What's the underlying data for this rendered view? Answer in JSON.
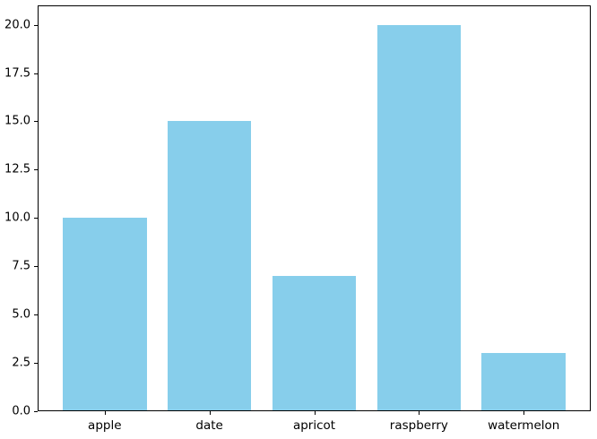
{
  "chart_data": {
    "type": "bar",
    "title": "",
    "xlabel": "",
    "ylabel": "",
    "categories": [
      "apple",
      "date",
      "apricot",
      "raspberry",
      "watermelon"
    ],
    "values": [
      10,
      15,
      7,
      20,
      3
    ],
    "ylim": [
      0,
      21
    ],
    "yticks": [
      0.0,
      2.5,
      5.0,
      7.5,
      10.0,
      12.5,
      15.0,
      17.5,
      20.0
    ],
    "ytick_labels": [
      "0.0",
      "2.5",
      "5.0",
      "7.5",
      "10.0",
      "12.5",
      "15.0",
      "17.5",
      "20.0"
    ],
    "bar_color": "#87CEEB",
    "axis_color": "#000000",
    "background_color": "#ffffff",
    "grid": false,
    "legend": "none"
  }
}
